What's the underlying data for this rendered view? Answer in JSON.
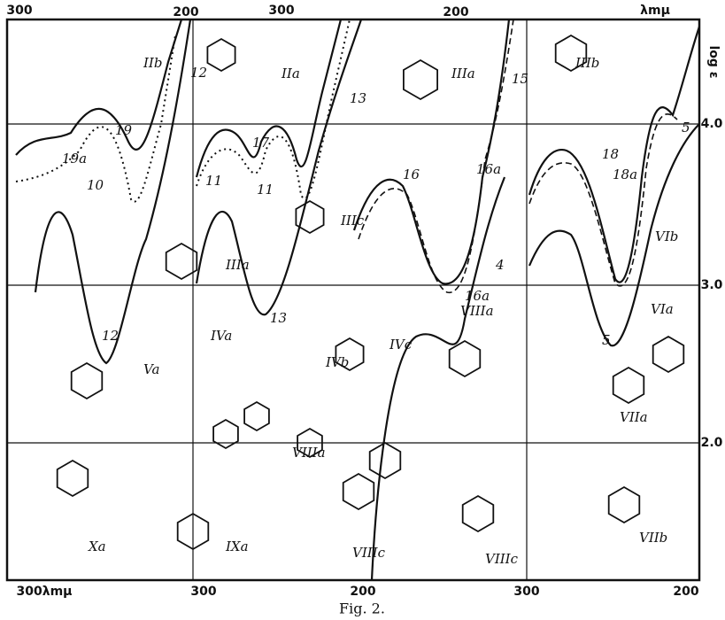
{
  "top_axis": {
    "ticks": [
      "300",
      "200",
      "300",
      "200",
      "λmμ"
    ]
  },
  "right_axis": {
    "title": "log ε",
    "ticks": [
      "4.0",
      "3.0",
      "2.0"
    ]
  },
  "bottom_axis": {
    "ticks": [
      "300λmμ",
      "300",
      "200",
      "300",
      "200"
    ]
  },
  "curve_labels": [
    "12",
    "19a",
    "19",
    "10",
    "17",
    "11",
    "11",
    "13",
    "13",
    "12",
    "16",
    "16a",
    "15",
    "18",
    "18a",
    "16a",
    "4",
    "5",
    "5"
  ],
  "compound_labels": [
    "IIb",
    "IIa",
    "IIIa",
    "IIIb",
    "IIIc",
    "IIIa",
    "VIb",
    "VIa",
    "IVa",
    "IVb",
    "IVc",
    "VIIIa",
    "Va",
    "VIIIa",
    "VIIa",
    "Xa",
    "IXa",
    "VIIIc",
    "VIIIc",
    "VIIb"
  ],
  "caption": "Fig. 2."
}
